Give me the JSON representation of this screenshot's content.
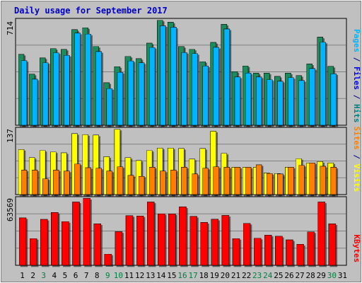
{
  "chart_data": {
    "type": "bar",
    "title": "Daily usage for September 2017",
    "categories": [
      "1",
      "2",
      "3",
      "4",
      "5",
      "6",
      "7",
      "8",
      "9",
      "10",
      "11",
      "12",
      "13",
      "14",
      "15",
      "16",
      "17",
      "18",
      "19",
      "20",
      "21",
      "22",
      "23",
      "24",
      "25",
      "26",
      "27",
      "28",
      "29",
      "30",
      "31"
    ],
    "weekend_days": [
      "3",
      "9",
      "10",
      "16",
      "17",
      "23",
      "24",
      "30"
    ],
    "panels": [
      {
        "id": "hits",
        "max_label": "714",
        "max": 714,
        "legend": [
          {
            "text": "Pages",
            "color": "#00b4ff"
          },
          {
            "text": " / ",
            "color": "#000080"
          },
          {
            "text": "Files",
            "color": "#0000ff"
          },
          {
            "text": " / ",
            "color": "#000080"
          },
          {
            "text": "Hits",
            "color": "#008080"
          }
        ],
        "series": [
          {
            "name": "Hits",
            "color": "#1c8c5c",
            "values": [
              480,
              346,
              456,
              519,
              514,
              648,
              661,
              534,
              288,
              397,
              467,
              451,
              556,
              711,
              698,
              533,
              515,
              431,
              561,
              684,
              363,
              402,
              353,
              353,
              331,
              353,
              337,
              415,
              597,
              399,
              0
            ]
          },
          {
            "name": "Files",
            "color": "#00b4ff",
            "values": [
              438,
              312,
              424,
              491,
              474,
              624,
              618,
              499,
              249,
              359,
              436,
              423,
              527,
              674,
              664,
              493,
              486,
              402,
              528,
              652,
              327,
              354,
              327,
              309,
              298,
              323,
              303,
              384,
              563,
              349,
              0
            ]
          }
        ]
      },
      {
        "id": "visits",
        "max_label": "137",
        "max": 137,
        "legend": [
          {
            "text": "Sites",
            "color": "#ff8000"
          },
          {
            "text": " / ",
            "color": "#000080"
          },
          {
            "text": "Visits",
            "color": "#ffff00"
          }
        ],
        "series": [
          {
            "name": "Visits",
            "color": "#ffff00",
            "values": [
              94,
              77,
              92,
              89,
              87,
              127,
              125,
              124,
              79,
              136,
              77,
              71,
              92,
              97,
              97,
              96,
              74,
              96,
              132,
              86,
              57,
              57,
              57,
              45,
              44,
              57,
              75,
              66,
              69,
              66,
              0
            ]
          },
          {
            "name": "Sites",
            "color": "#ff8000",
            "values": [
              51,
              51,
              33,
              51,
              49,
              64,
              56,
              55,
              49,
              58,
              40,
              38,
              57,
              49,
              51,
              57,
              43,
              55,
              58,
              57,
              57,
              57,
              62,
              44,
              43,
              57,
              61,
              66,
              59,
              57,
              0
            ]
          }
        ]
      },
      {
        "id": "kbytes",
        "max_label": "63569",
        "max": 63569,
        "legend": [
          {
            "text": "KBytes",
            "color": "#ff0000"
          }
        ],
        "series": [
          {
            "name": "KBytes",
            "color": "#ff0000",
            "values": [
              44900,
              25400,
              43500,
              50000,
              41400,
              59900,
              63400,
              39300,
              10700,
              31800,
              47000,
              46700,
              59900,
              48800,
              48700,
              55300,
              46300,
              40600,
              43600,
              47200,
              25400,
              39700,
              25700,
              28500,
              27500,
              24100,
              19900,
              31700,
              59900,
              39300,
              0
            ]
          }
        ]
      }
    ]
  }
}
